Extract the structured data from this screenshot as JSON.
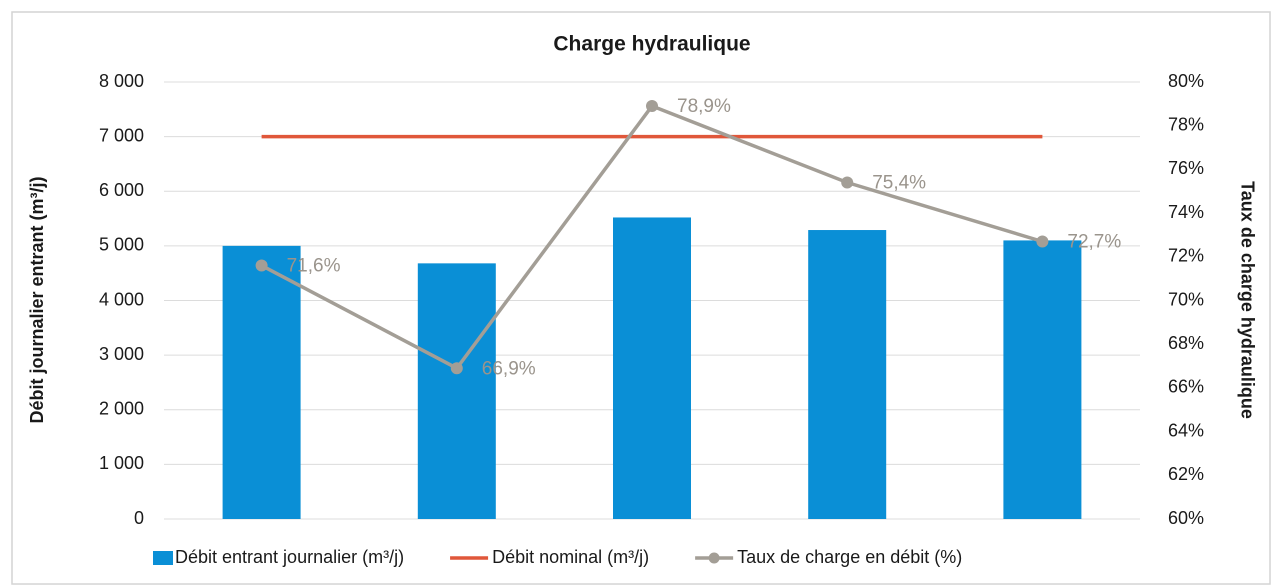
{
  "chart_data": {
    "type": "bar-line",
    "title": "Charge hydraulique",
    "y_label": "Débit journalier entrant (m³/j)",
    "y2_label": "Taux de charge hydraulique",
    "categories": [
      null,
      null,
      null,
      null,
      null
    ],
    "series": [
      {
        "name": "Débit entrant journalier (m³/j)",
        "type": "bar",
        "color": "#0a8fd6",
        "values": [
          5000,
          4680,
          5520,
          5290,
          5100
        ]
      },
      {
        "name": "Débit nominal (m³/j)",
        "type": "line",
        "color": "#e0573a",
        "values": [
          7000,
          7000,
          7000,
          7000,
          7000
        ]
      },
      {
        "name": "Taux de charge en débit (%)",
        "type": "line",
        "axis": "y2",
        "color": "#a39e96",
        "marker": true,
        "values": [
          71.6,
          66.9,
          78.9,
          75.4,
          72.7
        ],
        "value_labels": [
          "71,6%",
          "66,9%",
          "78,9%",
          "75,4%",
          "72,7%"
        ]
      }
    ],
    "ylim": [
      0,
      8000
    ],
    "yticks": [
      0,
      {
        "value": 1000,
        "label": "1 000"
      },
      {
        "value": 2000,
        "label": "2 000"
      },
      {
        "value": 3000,
        "label": "3 000"
      },
      {
        "value": 4000,
        "label": "4 000"
      },
      {
        "value": 5000,
        "label": "5 000"
      },
      {
        "value": 6000,
        "label": "6 000"
      },
      {
        "value": 7000,
        "label": "7 000"
      },
      {
        "value": 8000,
        "label": "8 000"
      }
    ],
    "y2lim": [
      60,
      80
    ],
    "y2ticks": [
      {
        "value": 60,
        "label": "60%"
      },
      {
        "value": 62,
        "label": "62%"
      },
      {
        "value": 64,
        "label": "64%"
      },
      {
        "value": 66,
        "label": "66%"
      },
      {
        "value": 68,
        "label": "68%"
      },
      {
        "value": 70,
        "label": "70%"
      },
      {
        "value": 72,
        "label": "72%"
      },
      {
        "value": 74,
        "label": "74%"
      },
      {
        "value": 76,
        "label": "76%"
      },
      {
        "value": 78,
        "label": "78%"
      },
      {
        "value": 80,
        "label": "80%"
      }
    ],
    "grid": true,
    "legend": "bottom"
  }
}
